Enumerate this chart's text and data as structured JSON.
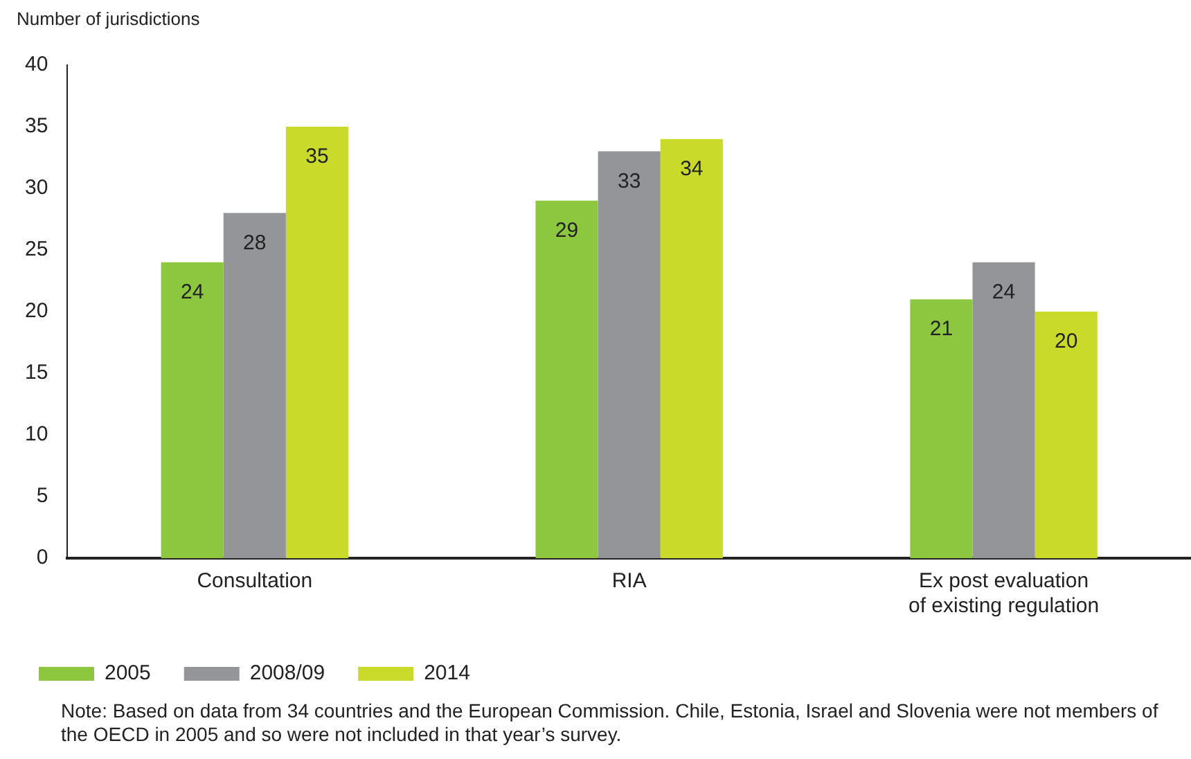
{
  "chart_data": {
    "type": "bar",
    "ylabel": "Number of jurisdictions",
    "categories": [
      "Consultation",
      "RIA",
      "Ex post evaluation\nof existing regulation"
    ],
    "series": [
      {
        "name": "2005",
        "color": "#8dc63f",
        "values": [
          24,
          29,
          21
        ]
      },
      {
        "name": "2008/09",
        "color": "#939598",
        "values": [
          28,
          33,
          24
        ]
      },
      {
        "name": "2014",
        "color": "#c9da2b",
        "values": [
          35,
          34,
          20
        ]
      }
    ],
    "ylim": [
      0,
      40
    ],
    "yticks": [
      0,
      5,
      10,
      15,
      20,
      25,
      30,
      35,
      40
    ],
    "grid": false,
    "legend": "bottom left",
    "data_labels": true,
    "annotations": [
      "Note: Based on data from 34 countries and the European Commission. Chile, Estonia, Israel and Slovenia were not members of the OECD in 2005 and so were not included in that year’s survey."
    ]
  }
}
